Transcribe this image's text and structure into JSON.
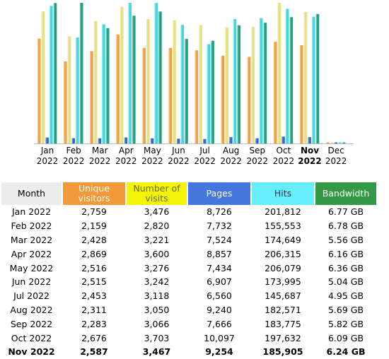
{
  "chart_data": {
    "type": "bar",
    "categories": [
      "Jan 2022",
      "Feb 2022",
      "Mar 2022",
      "Apr 2022",
      "May 2022",
      "Jun 2022",
      "Jul 2022",
      "Aug 2022",
      "Sep 2022",
      "Oct 2022",
      "Nov 2022",
      "Dec 2022"
    ],
    "series": [
      {
        "name": "Unique visitors",
        "color": "#f0a040",
        "values": [
          2759,
          2159,
          2428,
          2869,
          2516,
          2515,
          2453,
          2311,
          2283,
          2676,
          2587,
          0
        ]
      },
      {
        "name": "Number of visits",
        "color": "#e8e080",
        "values": [
          3476,
          2820,
          3221,
          3600,
          3276,
          3242,
          3118,
          3050,
          3066,
          3703,
          3467,
          0
        ]
      },
      {
        "name": "Pages",
        "color": "#3366cc",
        "values": [
          8726,
          7732,
          7524,
          8857,
          7434,
          6907,
          6560,
          9240,
          7666,
          10097,
          9254,
          0
        ]
      },
      {
        "name": "Hits",
        "color": "#40d8e0",
        "values": [
          201812,
          155553,
          174649,
          206315,
          206079,
          173995,
          145687,
          182571,
          183775,
          197632,
          185905,
          0
        ]
      },
      {
        "name": "Bandwidth",
        "color": "#20a080",
        "values": [
          6.77,
          6.78,
          5.56,
          6.16,
          6.36,
          5.04,
          4.95,
          5.69,
          5.82,
          6.09,
          6.24,
          0
        ]
      }
    ],
    "current_month_index": 10
  },
  "months": [
    {
      "short": "Jan",
      "year": "2022"
    },
    {
      "short": "Feb",
      "year": "2022"
    },
    {
      "short": "Mar",
      "year": "2022"
    },
    {
      "short": "Apr",
      "year": "2022"
    },
    {
      "short": "May",
      "year": "2022"
    },
    {
      "short": "Jun",
      "year": "2022"
    },
    {
      "short": "Jul",
      "year": "2022"
    },
    {
      "short": "Aug",
      "year": "2022"
    },
    {
      "short": "Sep",
      "year": "2022"
    },
    {
      "short": "Oct",
      "year": "2022"
    },
    {
      "short": "Nov",
      "year": "2022"
    },
    {
      "short": "Dec",
      "year": "2022"
    }
  ],
  "table": {
    "headers": {
      "month": "Month",
      "unique": "Unique visitors",
      "visits": "Number of visits",
      "pages": "Pages",
      "hits": "Hits",
      "bandwidth": "Bandwidth"
    },
    "rows": [
      {
        "month": "Jan 2022",
        "unique": "2,759",
        "visits": "3,476",
        "pages": "8,726",
        "hits": "201,812",
        "bandwidth": "6.77 GB"
      },
      {
        "month": "Feb 2022",
        "unique": "2,159",
        "visits": "2,820",
        "pages": "7,732",
        "hits": "155,553",
        "bandwidth": "6.78 GB"
      },
      {
        "month": "Mar 2022",
        "unique": "2,428",
        "visits": "3,221",
        "pages": "7,524",
        "hits": "174,649",
        "bandwidth": "5.56 GB"
      },
      {
        "month": "Apr 2022",
        "unique": "2,869",
        "visits": "3,600",
        "pages": "8,857",
        "hits": "206,315",
        "bandwidth": "6.16 GB"
      },
      {
        "month": "May 2022",
        "unique": "2,516",
        "visits": "3,276",
        "pages": "7,434",
        "hits": "206,079",
        "bandwidth": "6.36 GB"
      },
      {
        "month": "Jun 2022",
        "unique": "2,515",
        "visits": "3,242",
        "pages": "6,907",
        "hits": "173,995",
        "bandwidth": "5.04 GB"
      },
      {
        "month": "Jul 2022",
        "unique": "2,453",
        "visits": "3,118",
        "pages": "6,560",
        "hits": "145,687",
        "bandwidth": "4.95 GB"
      },
      {
        "month": "Aug 2022",
        "unique": "2,311",
        "visits": "3,050",
        "pages": "9,240",
        "hits": "182,571",
        "bandwidth": "5.69 GB"
      },
      {
        "month": "Sep 2022",
        "unique": "2,283",
        "visits": "3,066",
        "pages": "7,666",
        "hits": "183,775",
        "bandwidth": "5.82 GB"
      },
      {
        "month": "Oct 2022",
        "unique": "2,676",
        "visits": "3,703",
        "pages": "10,097",
        "hits": "197,632",
        "bandwidth": "6.09 GB"
      },
      {
        "month": "Nov 2022",
        "unique": "2,587",
        "visits": "3,467",
        "pages": "9,254",
        "hits": "185,905",
        "bandwidth": "6.24 GB",
        "current": true
      }
    ]
  }
}
